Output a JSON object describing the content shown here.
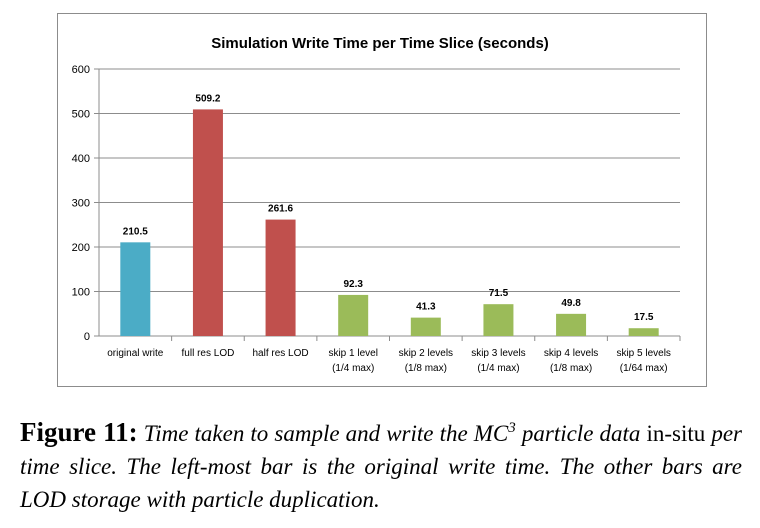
{
  "chart_data": {
    "type": "bar",
    "title": "Simulation Write Time per Time Slice (seconds)",
    "ylim": [
      0,
      600
    ],
    "yticks": [
      0,
      100,
      200,
      300,
      400,
      500,
      600
    ],
    "grid": true,
    "categories": [
      [
        "original write"
      ],
      [
        "full res LOD"
      ],
      [
        "half res LOD"
      ],
      [
        "skip 1 level",
        "(1/4 max)"
      ],
      [
        "skip 2 levels",
        "(1/8 max)"
      ],
      [
        "skip 3 levels",
        "(1/4 max)"
      ],
      [
        "skip 4 levels",
        "(1/8 max)"
      ],
      [
        "skip 5 levels",
        "(1/64 max)"
      ]
    ],
    "values": [
      210.5,
      509.2,
      261.6,
      92.3,
      41.3,
      71.5,
      49.8,
      17.5
    ],
    "value_labels": [
      "210.5",
      "509.2",
      "261.6",
      "92.3",
      "41.3",
      "71.5",
      "49.8",
      "17.5"
    ],
    "colors": [
      "#4bacc6",
      "#c0504d",
      "#c0504d",
      "#9bbb59",
      "#9bbb59",
      "#9bbb59",
      "#9bbb59",
      "#9bbb59"
    ]
  },
  "caption": {
    "label": "Figure 11:",
    "text_before": "Time taken to sample and write the MC",
    "superscript": "3",
    "text_mid": " particle data ",
    "text_upright": "in-situ",
    "text_after": " per time slice. The left-most bar is the original write time. The other bars are LOD storage with particle duplication."
  }
}
